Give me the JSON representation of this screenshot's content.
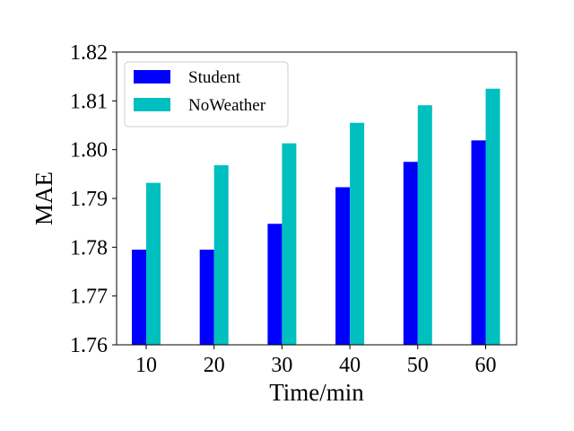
{
  "chart_data": {
    "type": "bar",
    "title": "",
    "xlabel": "Time/min",
    "ylabel": "MAE",
    "categories": [
      "10",
      "20",
      "30",
      "40",
      "50",
      "60"
    ],
    "series": [
      {
        "name": "Student",
        "color": "#0000ff",
        "values": [
          1.7795,
          1.7795,
          1.7848,
          1.7923,
          1.7975,
          1.8019
        ]
      },
      {
        "name": "NoWeather",
        "color": "#00bfbf",
        "values": [
          1.7932,
          1.7968,
          1.8013,
          1.8055,
          1.8091,
          1.8125
        ]
      }
    ],
    "ylim": [
      1.76,
      1.82
    ],
    "yticks": [
      "1.76",
      "1.77",
      "1.78",
      "1.79",
      "1.80",
      "1.81",
      "1.82"
    ],
    "grid": false,
    "legend": "top-left"
  }
}
